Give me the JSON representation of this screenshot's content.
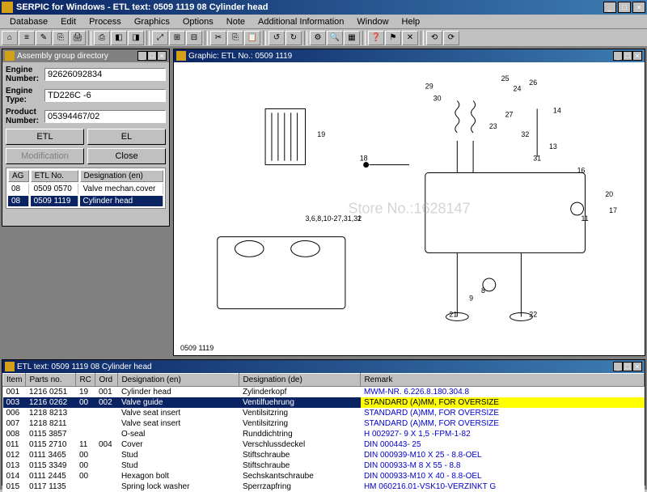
{
  "app": {
    "title": "SERPIC for Windows - ETL text: 0509 1119   08   Cylinder head",
    "menus": [
      "Database",
      "Edit",
      "Process",
      "Graphics",
      "Options",
      "Note",
      "Additional Information",
      "Window",
      "Help"
    ]
  },
  "assembly_panel": {
    "title": "Assembly group directory",
    "fields": {
      "engine_number_label": "Engine Number:",
      "engine_number": "92626092834",
      "engine_type_label": "Engine Type:",
      "engine_type": "TD226C -6",
      "product_number_label": "Product Number:",
      "product_number": "05394467/02"
    },
    "buttons": {
      "etl": "ETL",
      "el": "EL",
      "modification": "Modification",
      "close": "Close"
    },
    "table": {
      "cols": [
        "AG",
        "ETL No.",
        "Designation (en)"
      ],
      "rows": [
        {
          "ag": "08",
          "etl": "0509 0570",
          "des": "Valve mechan.cover",
          "sel": false
        },
        {
          "ag": "08",
          "etl": "0509 1119",
          "des": "Cylinder head",
          "sel": true
        }
      ]
    }
  },
  "graphic_panel": {
    "title": "Graphic: ETL No.: 0509 1119",
    "caption": "0509 1119",
    "watermark": "Store No.:1628147",
    "callouts": [
      "19",
      "29",
      "30",
      "18",
      "1",
      "3,6,8,10-27,31,32",
      "25",
      "24",
      "26",
      "14",
      "27",
      "23",
      "32",
      "13",
      "31",
      "16",
      "20",
      "17",
      "21",
      "11",
      "8",
      "9",
      "22"
    ]
  },
  "parts_panel": {
    "title": "ETL text: 0509 1119   08   Cylinder head",
    "cols": [
      "Item",
      "Parts no.",
      "RC",
      "Ord",
      "Designation (en)",
      "Designation (de)",
      "Remark"
    ],
    "col_widths": [
      "28px",
      "62px",
      "24px",
      "28px",
      "150px",
      "150px",
      "auto"
    ],
    "rows": [
      {
        "item": "001",
        "pn": "1216 0251",
        "rc": "19",
        "ord": "001",
        "en": "Cylinder head",
        "de": "Zylinderkopf",
        "rm": "MWM-NR. 6.226.8.180.304.8",
        "sel": false
      },
      {
        "item": "003",
        "pn": "1216 0262",
        "rc": "00",
        "ord": "002",
        "en": "Valve guide",
        "de": "Ventilfuehrung",
        "rm": "STANDARD (A)MM, FOR OVERSIZE",
        "sel": true
      },
      {
        "item": "006",
        "pn": "1218 8213",
        "rc": "",
        "ord": "",
        "en": "Valve seat insert",
        "de": "Ventilsitzring",
        "rm": "STANDARD (A)MM, FOR OVERSIZE",
        "sel": false
      },
      {
        "item": "007",
        "pn": "1218 8211",
        "rc": "",
        "ord": "",
        "en": "Valve seat insert",
        "de": "Ventilsitzring",
        "rm": "STANDARD (A)MM, FOR OVERSIZE",
        "sel": false
      },
      {
        "item": "008",
        "pn": "0115 3857",
        "rc": "",
        "ord": "",
        "en": "O-seal",
        "de": "Runddichtring",
        "rm": "H 002927- 9 X 1,5 -FPM-1-82",
        "sel": false
      },
      {
        "item": "011",
        "pn": "0115 2710",
        "rc": "11",
        "ord": "004",
        "en": "Cover",
        "de": "Verschlussdeckel",
        "rm": "DIN 000443- 25",
        "sel": false
      },
      {
        "item": "012",
        "pn": "0111 3465",
        "rc": "00",
        "ord": "",
        "en": "Stud",
        "de": "Stiftschraube",
        "rm": "DIN 000939-M10 X 25 - 8.8-OEL",
        "sel": false
      },
      {
        "item": "013",
        "pn": "0115 3349",
        "rc": "00",
        "ord": "",
        "en": "Stud",
        "de": "Stiftschraube",
        "rm": "DIN 000933-M 8 X 55 - 8.8",
        "sel": false
      },
      {
        "item": "014",
        "pn": "0111 2445",
        "rc": "00",
        "ord": "",
        "en": "Hexagon bolt",
        "de": "Sechskantschraube",
        "rm": "DIN 000933-M10 X 40 - 8.8-OEL",
        "sel": false
      },
      {
        "item": "015",
        "pn": "0117 1135",
        "rc": "",
        "ord": "",
        "en": "Spring lock washer",
        "de": "Sperrzapfring",
        "rm": "HM 060216.01-VSK10-VERZINKT G",
        "sel": false
      }
    ]
  },
  "colors": {
    "titlebar_start": "#0a2463",
    "titlebar_end": "#3e7cb1",
    "workspace": "#808080",
    "face": "#c0c0c0",
    "sel": "#0a2463",
    "highlight": "#ffff00",
    "link": "#0000cc"
  }
}
